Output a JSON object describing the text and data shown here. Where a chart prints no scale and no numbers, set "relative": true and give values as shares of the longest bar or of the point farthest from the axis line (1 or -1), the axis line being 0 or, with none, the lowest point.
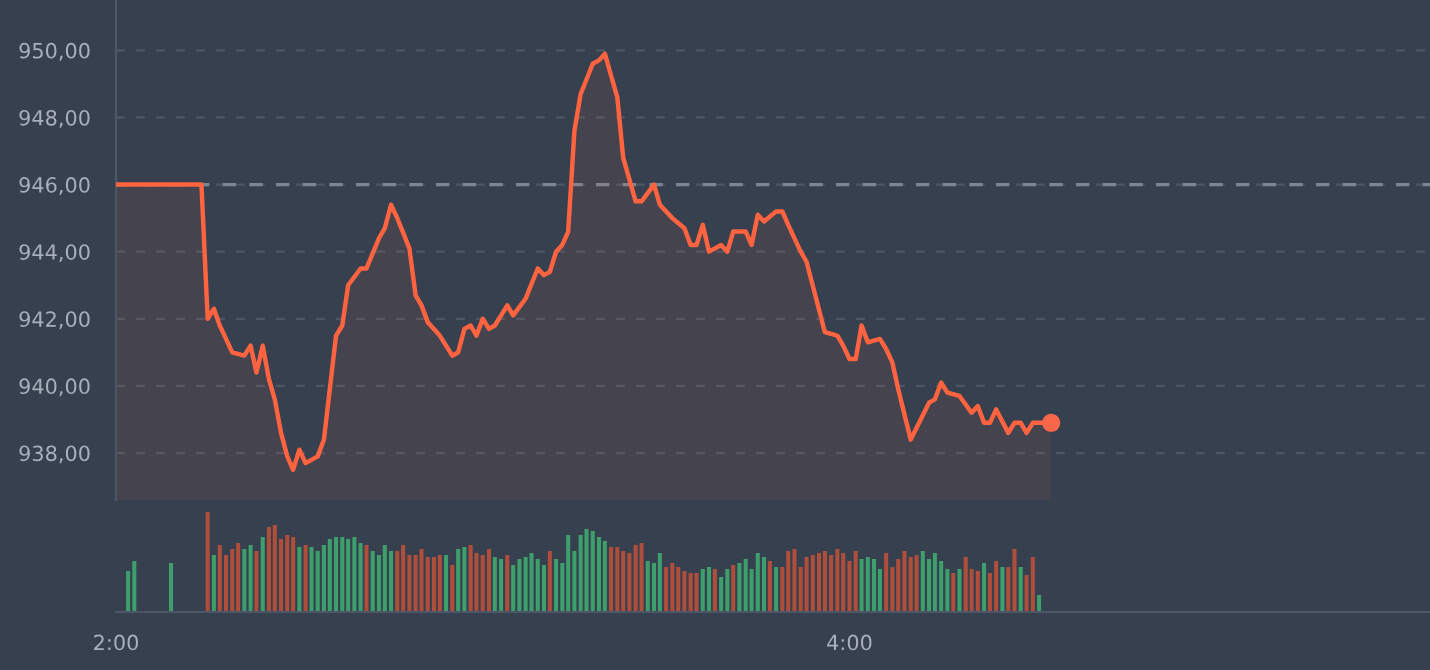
{
  "chart_data": [
    {
      "type": "area",
      "xlim": [
        2.0,
        5.583
      ],
      "ylim": [
        936.6,
        951.5
      ],
      "tick_labels": "y",
      "grid": "y",
      "line_style": "solid",
      "yticks": [
        {
          "value": 938,
          "label": "938,00"
        },
        {
          "value": 940,
          "label": "940,00"
        },
        {
          "value": 942,
          "label": "942,00"
        },
        {
          "value": 944,
          "label": "944,00"
        },
        {
          "value": 946,
          "label": "946,00"
        },
        {
          "value": 948,
          "label": "948,00"
        },
        {
          "value": 950,
          "label": "950,00"
        }
      ],
      "ref_lines": [
        {
          "axis": "y",
          "value": 946,
          "color": "#7d8591",
          "line_style": "dashed"
        }
      ],
      "series": [
        {
          "color": "#ff6340",
          "x": [
            2.0,
            2.233,
            2.25,
            2.267,
            2.283,
            2.3,
            2.317,
            2.35,
            2.367,
            2.383,
            2.4,
            2.417,
            2.433,
            2.45,
            2.467,
            2.483,
            2.5,
            2.517,
            2.55,
            2.567,
            2.6,
            2.617,
            2.633,
            2.667,
            2.683,
            2.717,
            2.733,
            2.75,
            2.767,
            2.8,
            2.817,
            2.833,
            2.85,
            2.883,
            2.917,
            2.933,
            2.95,
            2.967,
            2.983,
            3.0,
            3.017,
            3.033,
            3.067,
            3.083,
            3.117,
            3.15,
            3.167,
            3.183,
            3.2,
            3.217,
            3.233,
            3.25,
            3.267,
            3.3,
            3.317,
            3.333,
            3.367,
            3.383,
            3.417,
            3.433,
            3.467,
            3.483,
            3.517,
            3.55,
            3.567,
            3.583,
            3.6,
            3.617,
            3.65,
            3.667,
            3.683,
            3.717,
            3.733,
            3.75,
            3.767,
            3.8,
            3.817,
            3.833,
            3.867,
            3.883,
            3.933,
            3.967,
            3.983,
            4.0,
            4.017,
            4.033,
            4.05,
            4.083,
            4.1,
            4.117,
            4.133,
            4.167,
            4.217,
            4.233,
            4.25,
            4.267,
            4.3,
            4.333,
            4.35,
            4.367,
            4.383,
            4.4,
            4.433,
            4.45,
            4.467,
            4.483,
            4.5,
            4.55
          ],
          "values": [
            946.0,
            946.0,
            942.0,
            942.3,
            941.8,
            941.4,
            941.0,
            940.9,
            941.2,
            940.4,
            941.2,
            940.2,
            939.6,
            938.6,
            937.9,
            937.5,
            938.1,
            937.7,
            937.9,
            938.4,
            941.5,
            941.8,
            943.0,
            943.5,
            943.5,
            944.4,
            944.7,
            945.4,
            945.0,
            944.1,
            942.7,
            942.4,
            941.9,
            941.5,
            940.9,
            941.0,
            941.7,
            941.8,
            941.5,
            942.0,
            941.7,
            941.8,
            942.4,
            942.1,
            942.6,
            943.5,
            943.3,
            943.4,
            944.0,
            944.2,
            944.6,
            947.6,
            948.7,
            949.6,
            949.7,
            949.9,
            948.6,
            946.8,
            945.5,
            945.5,
            946.0,
            945.4,
            945.0,
            944.7,
            944.2,
            944.2,
            944.8,
            944.0,
            944.2,
            944.0,
            944.6,
            944.6,
            944.2,
            945.1,
            944.9,
            945.2,
            945.2,
            944.8,
            944.0,
            943.7,
            941.6,
            941.5,
            941.2,
            940.8,
            940.8,
            941.8,
            941.3,
            941.4,
            941.1,
            940.7,
            939.9,
            938.4,
            939.5,
            939.6,
            940.1,
            939.8,
            939.7,
            939.2,
            939.4,
            938.9,
            938.9,
            939.3,
            938.6,
            938.9,
            938.9,
            938.6,
            938.9,
            938.9
          ]
        },
        {
          "type": "scatter",
          "color": "#f9674a",
          "x": [
            4.55
          ],
          "values": [
            938.9
          ]
        }
      ]
    },
    {
      "type": "bar",
      "relative": true,
      "xlim": [
        2.0,
        5.583
      ],
      "tick_labels": "x",
      "xticks": [
        {
          "value": 2,
          "label": "2:00"
        },
        {
          "value": 4,
          "label": "4:00"
        }
      ],
      "x": [
        2.033,
        2.05,
        2.15,
        2.25,
        2.267,
        2.283,
        2.3,
        2.317,
        2.333,
        2.35,
        2.367,
        2.383,
        2.4,
        2.417,
        2.433,
        2.45,
        2.467,
        2.483,
        2.5,
        2.517,
        2.533,
        2.55,
        2.567,
        2.583,
        2.6,
        2.617,
        2.633,
        2.65,
        2.667,
        2.683,
        2.7,
        2.717,
        2.733,
        2.75,
        2.767,
        2.783,
        2.8,
        2.817,
        2.833,
        2.85,
        2.867,
        2.883,
        2.9,
        2.917,
        2.933,
        2.95,
        2.967,
        2.983,
        3.0,
        3.017,
        3.033,
        3.05,
        3.067,
        3.083,
        3.1,
        3.117,
        3.133,
        3.15,
        3.167,
        3.183,
        3.2,
        3.217,
        3.233,
        3.25,
        3.267,
        3.283,
        3.3,
        3.317,
        3.333,
        3.35,
        3.367,
        3.383,
        3.4,
        3.417,
        3.433,
        3.45,
        3.467,
        3.483,
        3.5,
        3.517,
        3.533,
        3.55,
        3.567,
        3.583,
        3.6,
        3.617,
        3.633,
        3.65,
        3.667,
        3.683,
        3.7,
        3.717,
        3.733,
        3.75,
        3.767,
        3.783,
        3.8,
        3.817,
        3.833,
        3.85,
        3.867,
        3.883,
        3.9,
        3.917,
        3.933,
        3.95,
        3.967,
        3.983,
        4.0,
        4.017,
        4.033,
        4.05,
        4.067,
        4.083,
        4.1,
        4.117,
        4.133,
        4.15,
        4.167,
        4.183,
        4.2,
        4.217,
        4.233,
        4.25,
        4.267,
        4.283,
        4.3,
        4.317,
        4.333,
        4.35,
        4.367,
        4.383,
        4.4,
        4.417,
        4.433,
        4.45,
        4.467,
        4.483,
        4.5,
        4.517
      ],
      "values": [
        0.41,
        0.51,
        0.49,
        1.0,
        0.57,
        0.67,
        0.57,
        0.63,
        0.69,
        0.63,
        0.67,
        0.61,
        0.75,
        0.85,
        0.87,
        0.73,
        0.77,
        0.75,
        0.65,
        0.67,
        0.65,
        0.61,
        0.67,
        0.73,
        0.75,
        0.75,
        0.73,
        0.75,
        0.69,
        0.67,
        0.61,
        0.57,
        0.67,
        0.61,
        0.61,
        0.67,
        0.57,
        0.57,
        0.63,
        0.55,
        0.55,
        0.57,
        0.57,
        0.47,
        0.63,
        0.65,
        0.67,
        0.59,
        0.57,
        0.63,
        0.55,
        0.53,
        0.57,
        0.47,
        0.53,
        0.55,
        0.59,
        0.53,
        0.47,
        0.61,
        0.53,
        0.49,
        0.77,
        0.61,
        0.77,
        0.83,
        0.81,
        0.75,
        0.71,
        0.65,
        0.65,
        0.61,
        0.59,
        0.67,
        0.69,
        0.51,
        0.49,
        0.59,
        0.45,
        0.49,
        0.45,
        0.41,
        0.39,
        0.39,
        0.43,
        0.45,
        0.43,
        0.35,
        0.43,
        0.47,
        0.49,
        0.53,
        0.43,
        0.59,
        0.55,
        0.51,
        0.45,
        0.45,
        0.61,
        0.63,
        0.45,
        0.55,
        0.57,
        0.59,
        0.61,
        0.57,
        0.63,
        0.59,
        0.51,
        0.61,
        0.53,
        0.55,
        0.53,
        0.43,
        0.59,
        0.45,
        0.53,
        0.61,
        0.55,
        0.57,
        0.61,
        0.53,
        0.59,
        0.51,
        0.43,
        0.39,
        0.43,
        0.55,
        0.43,
        0.41,
        0.49,
        0.39,
        0.51,
        0.45,
        0.45,
        0.63,
        0.45,
        0.37,
        0.55,
        0.17
      ],
      "colors": [
        "#3d9f6c",
        "#3d9f6c",
        "#3d9f6c",
        "#b04e3c",
        "#3d9f6c",
        "#b04e3c",
        "#b04e3c",
        "#b04e3c",
        "#b04e3c",
        "#3d9f6c",
        "#3d9f6c",
        "#b04e3c",
        "#3d9f6c",
        "#b04e3c",
        "#b04e3c",
        "#b04e3c",
        "#b04e3c",
        "#b04e3c",
        "#3d9f6c",
        "#b04e3c",
        "#3d9f6c",
        "#3d9f6c",
        "#3d9f6c",
        "#3d9f6c",
        "#3d9f6c",
        "#3d9f6c",
        "#3d9f6c",
        "#3d9f6c",
        "#3d9f6c",
        "#b04e3c",
        "#3d9f6c",
        "#3d9f6c",
        "#3d9f6c",
        "#3d9f6c",
        "#b04e3c",
        "#b04e3c",
        "#b04e3c",
        "#b04e3c",
        "#b04e3c",
        "#b04e3c",
        "#b04e3c",
        "#b04e3c",
        "#3d9f6c",
        "#b04e3c",
        "#3d9f6c",
        "#3d9f6c",
        "#b04e3c",
        "#b04e3c",
        "#b04e3c",
        "#b04e3c",
        "#3d9f6c",
        "#3d9f6c",
        "#b04e3c",
        "#3d9f6c",
        "#3d9f6c",
        "#3d9f6c",
        "#3d9f6c",
        "#3d9f6c",
        "#3d9f6c",
        "#b04e3c",
        "#3d9f6c",
        "#3d9f6c",
        "#3d9f6c",
        "#3d9f6c",
        "#3d9f6c",
        "#3d9f6c",
        "#3d9f6c",
        "#3d9f6c",
        "#3d9f6c",
        "#b04e3c",
        "#b04e3c",
        "#b04e3c",
        "#b04e3c",
        "#b04e3c",
        "#b04e3c",
        "#3d9f6c",
        "#3d9f6c",
        "#3d9f6c",
        "#b04e3c",
        "#b04e3c",
        "#b04e3c",
        "#b04e3c",
        "#b04e3c",
        "#b04e3c",
        "#3d9f6c",
        "#3d9f6c",
        "#b04e3c",
        "#3d9f6c",
        "#3d9f6c",
        "#b04e3c",
        "#3d9f6c",
        "#3d9f6c",
        "#3d9f6c",
        "#3d9f6c",
        "#3d9f6c",
        "#b04e3c",
        "#3d9f6c",
        "#b04e3c",
        "#b04e3c",
        "#b04e3c",
        "#b04e3c",
        "#b04e3c",
        "#b04e3c",
        "#b04e3c",
        "#b04e3c",
        "#b04e3c",
        "#b04e3c",
        "#b04e3c",
        "#b04e3c",
        "#b04e3c",
        "#3d9f6c",
        "#3d9f6c",
        "#3d9f6c",
        "#3d9f6c",
        "#b04e3c",
        "#b04e3c",
        "#b04e3c",
        "#b04e3c",
        "#b04e3c",
        "#b04e3c",
        "#3d9f6c",
        "#3d9f6c",
        "#3d9f6c",
        "#3d9f6c",
        "#3d9f6c",
        "#b04e3c",
        "#3d9f6c",
        "#b04e3c",
        "#b04e3c",
        "#b04e3c",
        "#3d9f6c",
        "#b04e3c",
        "#b04e3c",
        "#3d9f6c",
        "#b04e3c",
        "#b04e3c",
        "#3d9f6c",
        "#b04e3c",
        "#b04e3c",
        "#3d9f6c"
      ]
    }
  ]
}
